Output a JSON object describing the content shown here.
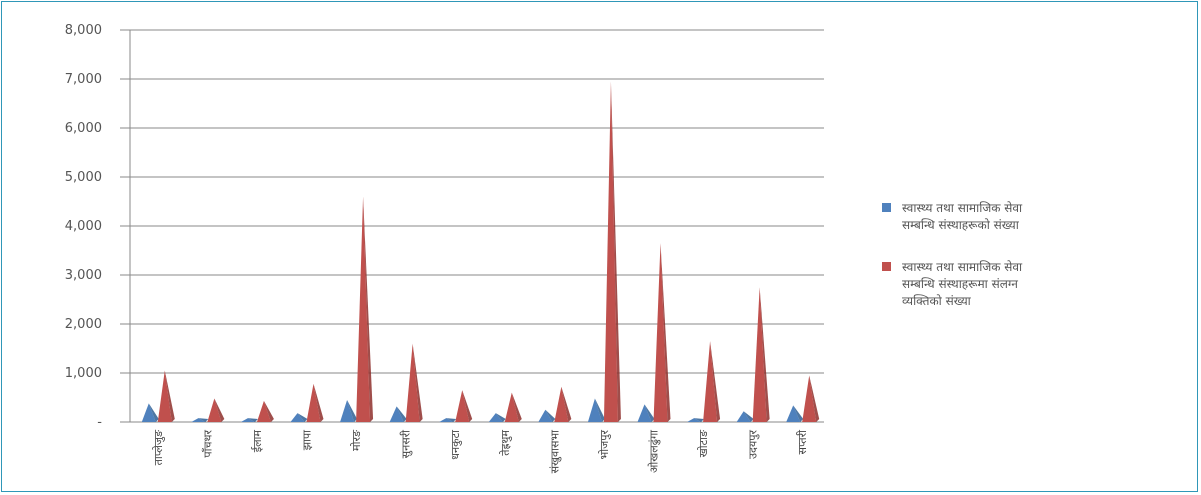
{
  "chart_data": {
    "type": "area",
    "categories": [
      "ताप्लेजुङ",
      "पाँचथर",
      "ईलाम",
      "झापा",
      "मोरङ",
      "सुनसरी",
      "धनकुटा",
      "तेह्रथुम",
      "संखुवासभा",
      "भोजपुर",
      "ओखलढुंगा",
      "खोटाङ",
      "उदयपुर",
      "सप्तरी"
    ],
    "series": [
      {
        "name": "स्वास्थ्य तथा सामाजिक सेवा सम्बन्धि संस्थाहरूको संख्या",
        "color": "#4f81bd",
        "values": [
          380,
          80,
          80,
          180,
          450,
          320,
          80,
          180,
          250,
          480,
          360,
          80,
          220,
          340
        ]
      },
      {
        "name": "स्वास्थ्य तथा सामाजिक सेवा सम्बन्धि संस्थाहरूमा संलग्न व्यक्तिको संख्या",
        "color": "#c0504d",
        "values": [
          1050,
          480,
          430,
          780,
          4600,
          1600,
          650,
          600,
          720,
          6950,
          3650,
          1650,
          2750,
          950
        ]
      }
    ],
    "ylim": [
      0,
      8000
    ],
    "yticks": [
      "-",
      "1,000",
      "2,000",
      "3,000",
      "4,000",
      "5,000",
      "6,000",
      "7,000",
      "8,000"
    ],
    "grid": true,
    "legend_position": "right"
  },
  "legend_items": [
    {
      "color": "#4f81bd",
      "lines": [
        "स्वास्थ्य तथा सामाजिक सेवा",
        "सम्बन्धि संस्थाहरूको संख्या"
      ]
    },
    {
      "color": "#c0504d",
      "lines": [
        "स्वास्थ्य तथा सामाजिक सेवा",
        "सम्बन्धि संस्थाहरूमा संलग्न",
        "व्यक्तिको संख्या"
      ]
    }
  ]
}
